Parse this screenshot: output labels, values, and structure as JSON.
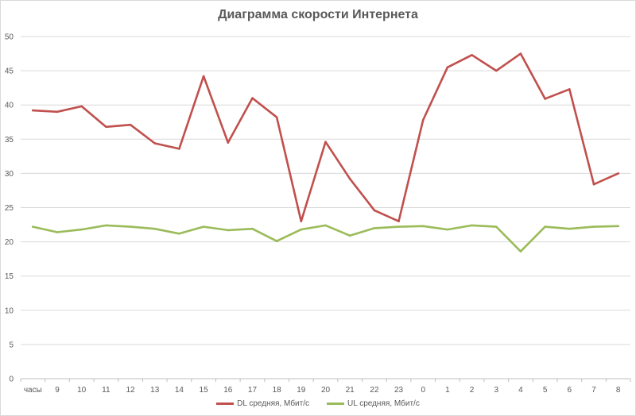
{
  "chart_data": {
    "type": "line",
    "title": "Диаграмма скорости Интернета",
    "xlabel": "",
    "ylabel": "",
    "categories": [
      "часы",
      "9",
      "10",
      "11",
      "12",
      "13",
      "14",
      "15",
      "16",
      "17",
      "18",
      "19",
      "20",
      "21",
      "22",
      "23",
      "0",
      "1",
      "2",
      "3",
      "4",
      "5",
      "6",
      "7",
      "8"
    ],
    "ylim": [
      0,
      50
    ],
    "yticks": [
      0,
      5,
      10,
      15,
      20,
      25,
      30,
      35,
      40,
      45,
      50
    ],
    "grid": true,
    "legend_position": "bottom",
    "series": [
      {
        "name": "DL средняя, Мбит/с",
        "color": "#c0504d",
        "values": [
          39.2,
          39.0,
          39.8,
          36.8,
          37.1,
          34.4,
          33.6,
          44.2,
          34.5,
          41.0,
          38.2,
          23.0,
          34.6,
          29.2,
          24.6,
          23.0,
          37.8,
          45.5,
          47.3,
          45.0,
          47.5,
          40.9,
          42.3,
          28.4,
          30.0
        ]
      },
      {
        "name": "UL средняя, Мбит/с",
        "color": "#9bbb59",
        "values": [
          22.2,
          21.4,
          21.8,
          22.4,
          22.2,
          21.9,
          21.2,
          22.2,
          21.7,
          21.9,
          20.1,
          21.8,
          22.4,
          20.9,
          22.0,
          22.2,
          22.3,
          21.8,
          22.4,
          22.2,
          18.6,
          22.2,
          21.9,
          22.2,
          22.3
        ]
      }
    ]
  }
}
